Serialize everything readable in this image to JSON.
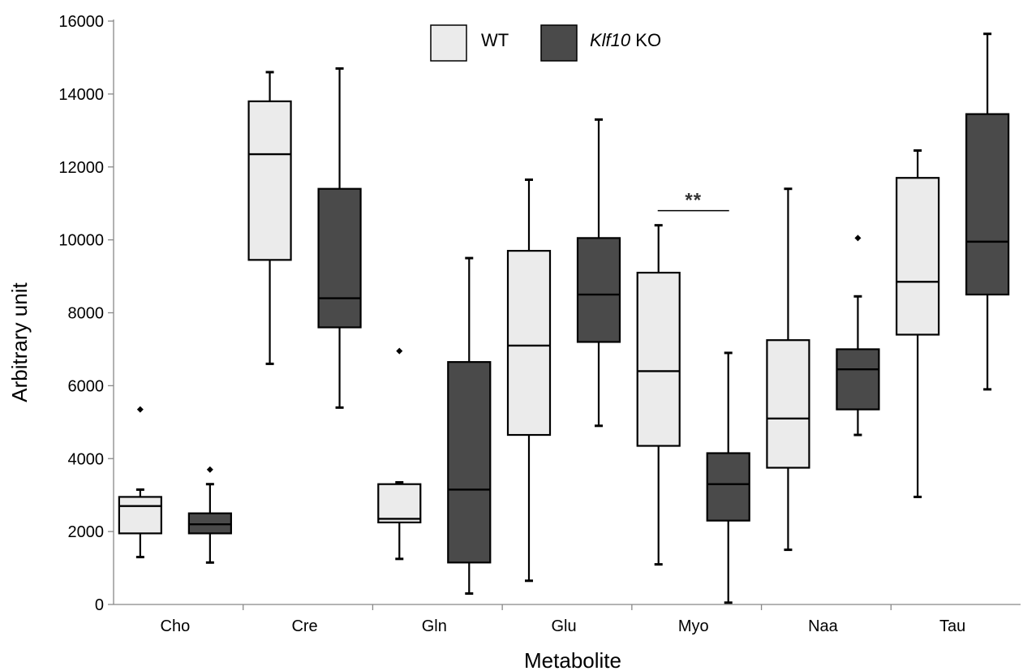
{
  "chart_data": {
    "type": "box",
    "xlabel": "Metabolite",
    "ylabel": "Arbitrary unit",
    "ylim": [
      0,
      16000
    ],
    "yticks": [
      0,
      2000,
      4000,
      6000,
      8000,
      10000,
      12000,
      14000,
      16000
    ],
    "categories": [
      "Cho",
      "Cre",
      "Gln",
      "Glu",
      "Myo",
      "Naa",
      "Tau"
    ],
    "legend": {
      "placement": "top-center",
      "entries": [
        {
          "label": "WT",
          "color": "#ebebeb"
        },
        {
          "label_italic": "Klf10",
          "label_rest": " KO",
          "color": "#4a4a4a"
        }
      ]
    },
    "series": [
      {
        "name": "WT",
        "color": "#ebebeb",
        "boxes": [
          {
            "min": 1300,
            "q1": 1950,
            "median": 2700,
            "q3": 2950,
            "max": 3150,
            "outliers": [
              5350
            ]
          },
          {
            "min": 6600,
            "q1": 9450,
            "median": 12350,
            "q3": 13800,
            "max": 14600,
            "outliers": []
          },
          {
            "min": 1250,
            "q1": 2250,
            "median": 2350,
            "q3": 3300,
            "max": 3350,
            "outliers": [
              6950
            ]
          },
          {
            "min": 650,
            "q1": 4650,
            "median": 7100,
            "q3": 9700,
            "max": 11650,
            "outliers": []
          },
          {
            "min": 1100,
            "q1": 4350,
            "median": 6400,
            "q3": 9100,
            "max": 10400,
            "outliers": []
          },
          {
            "min": 1500,
            "q1": 3750,
            "median": 5100,
            "q3": 7250,
            "max": 11400,
            "outliers": []
          },
          {
            "min": 2950,
            "q1": 7400,
            "median": 8850,
            "q3": 11700,
            "max": 12450,
            "outliers": []
          }
        ]
      },
      {
        "name_italic": "Klf10",
        "name_rest": " KO",
        "color": "#4a4a4a",
        "boxes": [
          {
            "min": 1150,
            "q1": 1950,
            "median": 2200,
            "q3": 2500,
            "max": 3300,
            "outliers": [
              3700
            ]
          },
          {
            "min": 5400,
            "q1": 7600,
            "median": 8400,
            "q3": 11400,
            "max": 14700,
            "outliers": []
          },
          {
            "min": 300,
            "q1": 1150,
            "median": 3150,
            "q3": 6650,
            "max": 9500,
            "outliers": []
          },
          {
            "min": 4900,
            "q1": 7200,
            "median": 8500,
            "q3": 10050,
            "max": 13300,
            "outliers": []
          },
          {
            "min": 50,
            "q1": 2300,
            "median": 3300,
            "q3": 4150,
            "max": 6900,
            "outliers": []
          },
          {
            "min": 4650,
            "q1": 5350,
            "median": 6450,
            "q3": 7000,
            "max": 8450,
            "outliers": [
              10050
            ]
          },
          {
            "min": 5900,
            "q1": 8500,
            "median": 9950,
            "q3": 13450,
            "max": 15650,
            "outliers": []
          }
        ]
      }
    ],
    "annotations": [
      {
        "text": "**",
        "category": "Myo",
        "y": 10800
      }
    ]
  }
}
